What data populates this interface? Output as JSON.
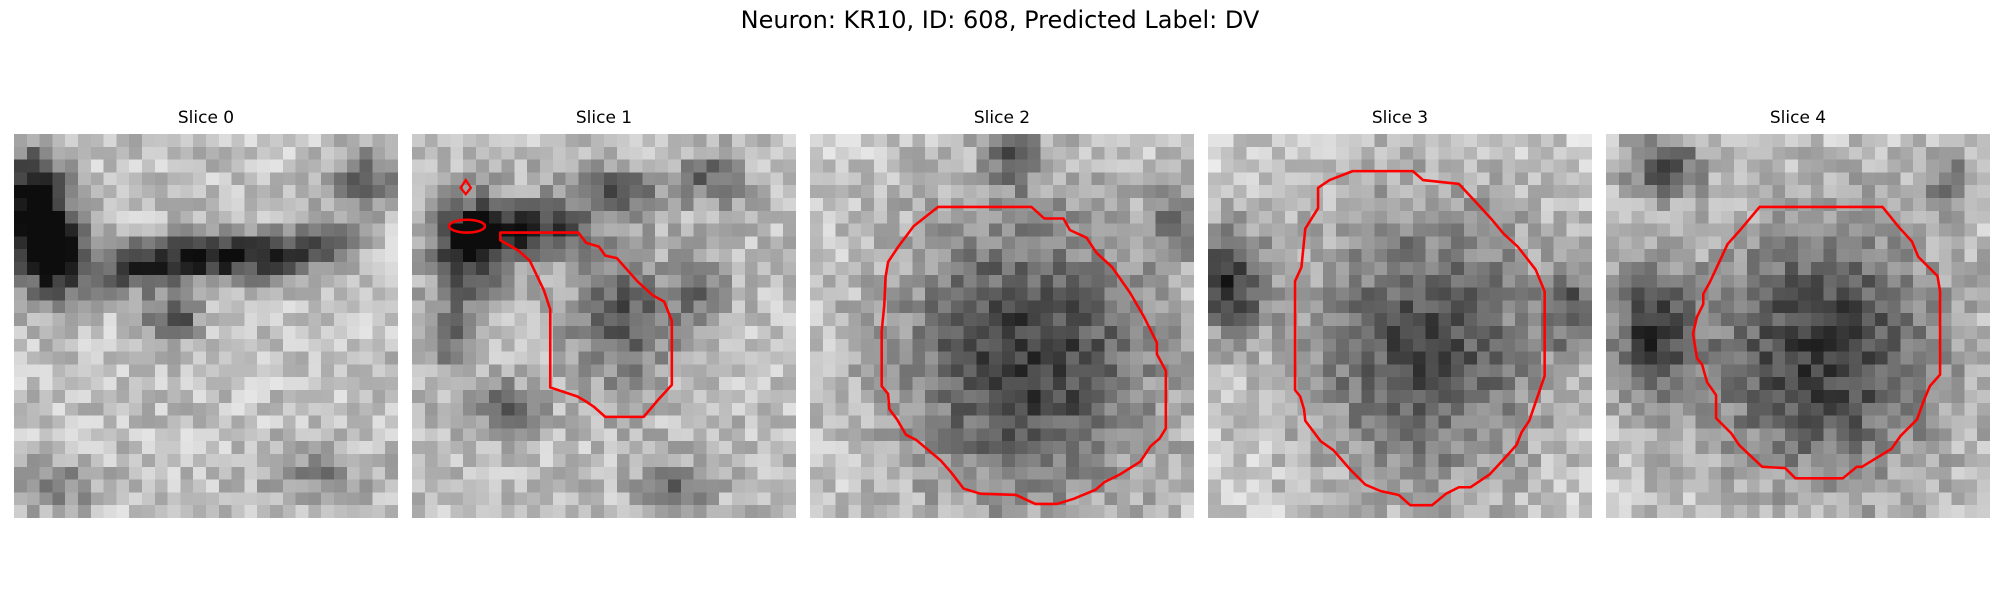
{
  "figure": {
    "title": "Neuron: KR10, ID: 608, Predicted Label: DV"
  },
  "slices": [
    {
      "title": "Slice 0"
    },
    {
      "title": "Slice 1"
    },
    {
      "title": "Slice 2"
    },
    {
      "title": "Slice 3"
    },
    {
      "title": "Slice 4"
    }
  ],
  "colors": {
    "contour": "#ff0000",
    "background": "#ffffff"
  }
}
